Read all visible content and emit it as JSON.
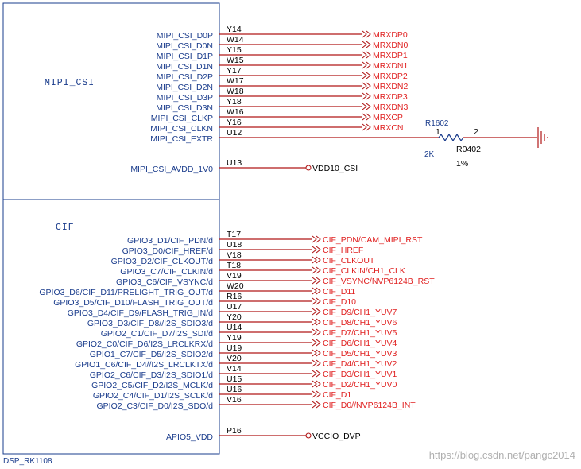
{
  "component": {
    "ref": "DSP_RK1108",
    "sections": [
      "MIPI_CSI",
      "CIF"
    ]
  },
  "mipi_pins": [
    {
      "name": "MIPI_CSI_D0P",
      "pin": "Y14",
      "net": "MRXDP0"
    },
    {
      "name": "MIPI_CSI_D0N",
      "pin": "W14",
      "net": "MRXDN0"
    },
    {
      "name": "MIPI_CSI_D1P",
      "pin": "Y15",
      "net": "MRXDP1"
    },
    {
      "name": "MIPI_CSI_D1N",
      "pin": "W15",
      "net": "MRXDN1"
    },
    {
      "name": "MIPI_CSI_D2P",
      "pin": "Y17",
      "net": "MRXDP2"
    },
    {
      "name": "MIPI_CSI_D2N",
      "pin": "W17",
      "net": "MRXDN2"
    },
    {
      "name": "MIPI_CSI_D3P",
      "pin": "W18",
      "net": "MRXDP3"
    },
    {
      "name": "MIPI_CSI_D3N",
      "pin": "Y18",
      "net": "MRXDN3"
    },
    {
      "name": "MIPI_CSI_CLKP",
      "pin": "W16",
      "net": "MRXCP"
    },
    {
      "name": "MIPI_CSI_CLKN",
      "pin": "Y16",
      "net": "MRXCN"
    },
    {
      "name": "MIPI_CSI_EXTR",
      "pin": "U12",
      "net": ""
    },
    {
      "name": "MIPI_CSI_AVDD_1V0",
      "pin": "U13",
      "net": "VDD10_CSI"
    }
  ],
  "resistor": {
    "ref": "R1602",
    "value": "2K",
    "package": "R0402",
    "tolerance": "1%",
    "pin1": "1",
    "pin2": "2"
  },
  "cif_pins": [
    {
      "name": "GPIO3_D1/CIF_PDN/d",
      "pin": "T17",
      "net": "CIF_PDN/CAM_MIPI_RST"
    },
    {
      "name": "GPIO3_D0/CIF_HREF/d",
      "pin": "U18",
      "net": "CIF_HREF"
    },
    {
      "name": "GPIO3_D2/CIF_CLKOUT/d",
      "pin": "V18",
      "net": "CIF_CLKOUT"
    },
    {
      "name": "GPIO3_C7/CIF_CLKIN/d",
      "pin": "T18",
      "net": "CIF_CLKIN/CH1_CLK"
    },
    {
      "name": "GPIO3_C6/CIF_VSYNC/d",
      "pin": "V19",
      "net": "CIF_VSYNC/NVP6124B_RST"
    },
    {
      "name": "GPIO3_D6/CIF_D11/PRELIGHT_TRIG_OUT/d",
      "pin": "W20",
      "net": "CIF_D11"
    },
    {
      "name": "GPIO3_D5/CIF_D10/FLASH_TRIG_OUT/d",
      "pin": "R16",
      "net": "CIF_D10"
    },
    {
      "name": "GPIO3_D4/CIF_D9/FLASH_TRIG_IN/d",
      "pin": "U17",
      "net": "CIF_D9/CH1_YUV7"
    },
    {
      "name": "GPIO3_D3/CIF_D8//I2S_SDIO3/d",
      "pin": "Y20",
      "net": "CIF_D8/CH1_YUV6"
    },
    {
      "name": "GPIO2_C1/CIF_D7/I2S_SDI/d",
      "pin": "U14",
      "net": "CIF_D7/CH1_YUV5"
    },
    {
      "name": "GPIO2_C0/CIF_D6/I2S_LRCLKRX/d",
      "pin": "Y19",
      "net": "CIF_D6/CH1_YUV4"
    },
    {
      "name": "GPIO1_C7/CIF_D5/I2S_SDIO2/d",
      "pin": "U19",
      "net": "CIF_D5/CH1_YUV3"
    },
    {
      "name": "GPIO1_C6/CIF_D4//I2S_LRCLKTX/d",
      "pin": "V20",
      "net": "CIF_D4/CH1_YUV2"
    },
    {
      "name": "GPIO2_C6/CIF_D3/I2S_SDIO1/d",
      "pin": "V14",
      "net": "CIF_D3/CH1_YUV1"
    },
    {
      "name": "GPIO2_C5/CIF_D2/I2S_MCLK/d",
      "pin": "U15",
      "net": "CIF_D2/CH1_YUV0"
    },
    {
      "name": "GPIO2_C4/CIF_D1/I2S_SCLK/d",
      "pin": "U16",
      "net": "CIF_D1"
    },
    {
      "name": "GPIO2_C3/CIF_D0/I2S_SDO/d",
      "pin": "V16",
      "net": "CIF_D0//NVP6124B_INT"
    },
    {
      "name": "APIO5_VDD",
      "pin": "P16",
      "net": "VCCIO_DVP"
    }
  ],
  "watermark": "https://blog.csdn.net/pangc2014",
  "colors": {
    "body_outline": "#1a3c8c",
    "wire": "#b01818",
    "pin_name": "#1a3c8c",
    "net_label": "#e02020",
    "pin_number": "#000000"
  }
}
